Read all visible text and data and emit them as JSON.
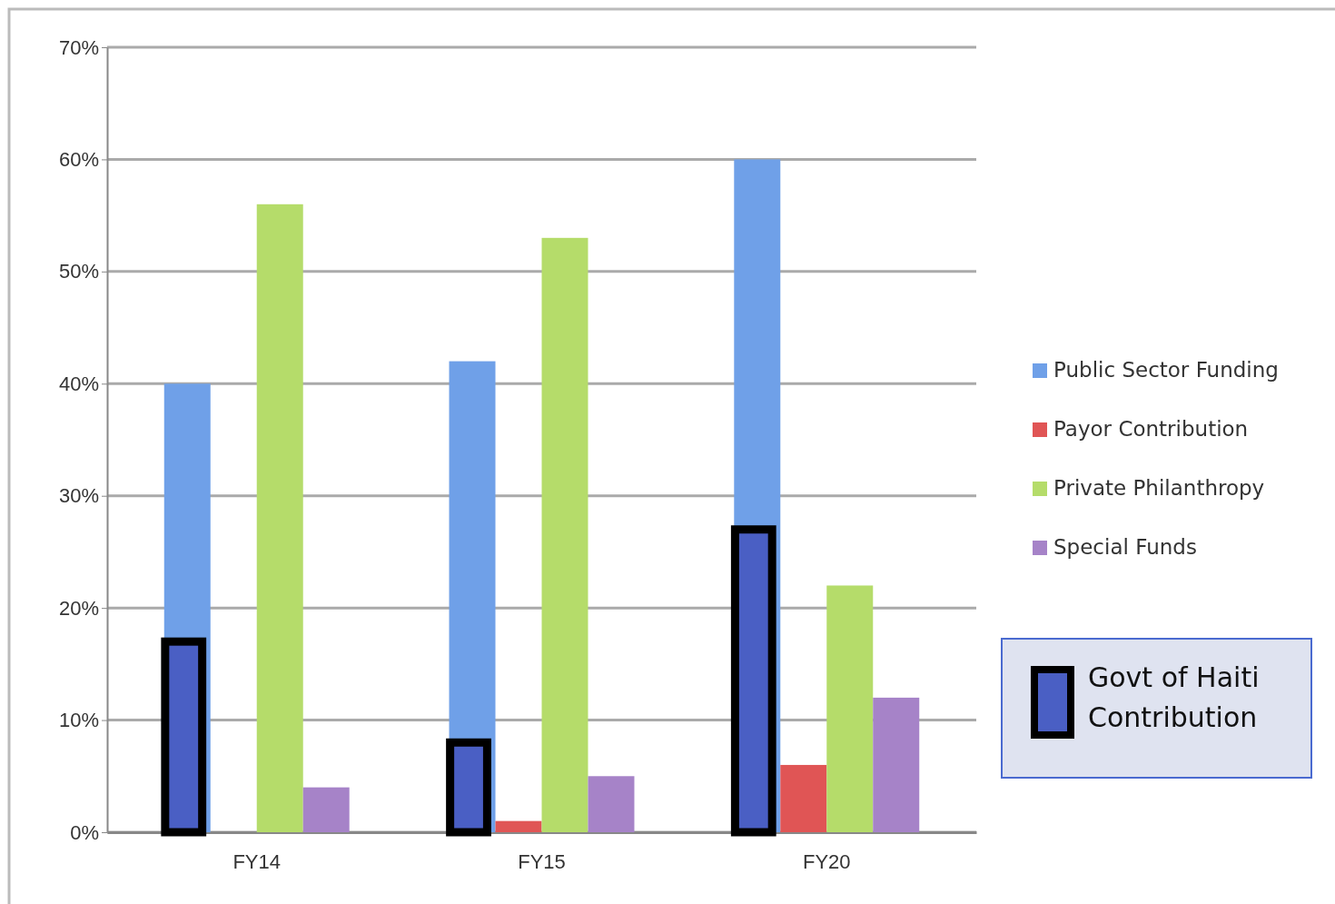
{
  "chart_data": {
    "type": "bar",
    "categories": [
      "FY14",
      "FY15",
      "FY20"
    ],
    "series": [
      {
        "name": "Public Sector Funding",
        "color": "#6fa0e8",
        "values": [
          40,
          42,
          60
        ]
      },
      {
        "name": "Payor Contribution",
        "color": "#e05555",
        "values": [
          0,
          1,
          6
        ]
      },
      {
        "name": "Private Philanthropy",
        "color": "#b5dc6a",
        "values": [
          56,
          53,
          22
        ]
      },
      {
        "name": "Special Funds",
        "color": "#a683c8",
        "values": [
          4,
          5,
          12
        ]
      },
      {
        "name": "Govt of Haiti Contribution",
        "color": "#4a5fc4",
        "values": [
          17,
          8,
          27
        ]
      }
    ],
    "ylim": [
      0,
      70
    ],
    "yticks": [
      {
        "value": 0,
        "label": "0%"
      },
      {
        "value": 10,
        "label": "10%"
      },
      {
        "value": 20,
        "label": "20%"
      },
      {
        "value": 30,
        "label": "30%"
      },
      {
        "value": 40,
        "label": "40%"
      },
      {
        "value": 50,
        "label": "50%"
      },
      {
        "value": 60,
        "label": "60%"
      },
      {
        "value": 70,
        "label": "70%"
      }
    ],
    "grid": "y",
    "legend": "right"
  }
}
